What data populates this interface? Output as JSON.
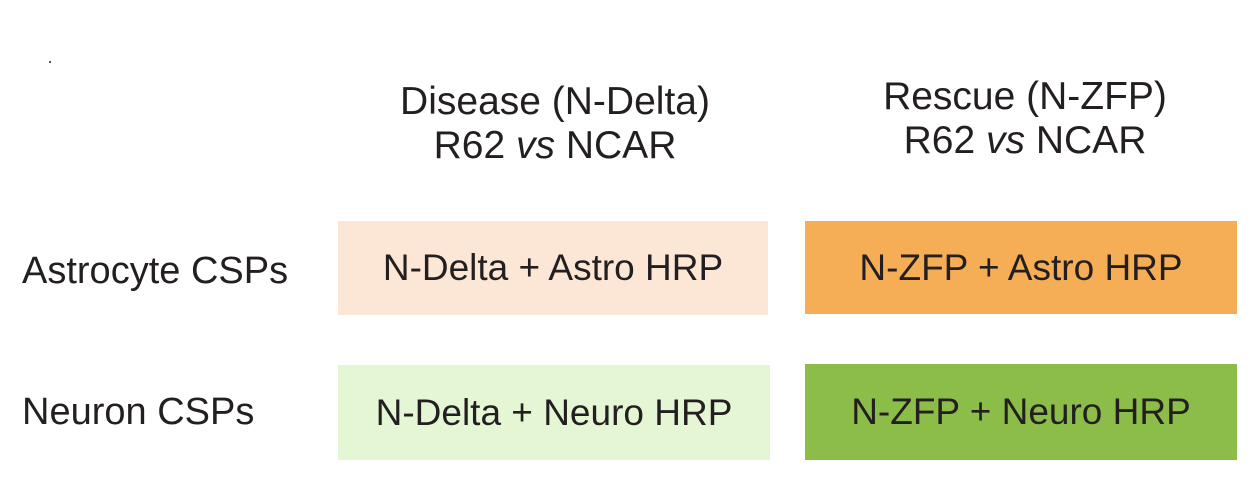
{
  "columns": [
    {
      "title": "Disease (N-Delta)",
      "line2_a": "R62 ",
      "line2_em": "vs",
      "line2_b": " NCAR"
    },
    {
      "title": "Rescue (N-ZFP)",
      "line2_a": "R62 ",
      "line2_em": "vs",
      "line2_b": " NCAR"
    }
  ],
  "rows": [
    {
      "label": "Astrocyte CSPs"
    },
    {
      "label": "Neuron CSPs"
    }
  ],
  "cells": [
    {
      "text": "N-Delta + Astro HRP",
      "color": "#fce6d6"
    },
    {
      "text": "N-ZFP + Astro HRP",
      "color": "#f5ae55"
    },
    {
      "text": "N-Delta + Neuro HRP",
      "color": "#e5f6d4"
    },
    {
      "text": "N-ZFP + Neuro HRP",
      "color": "#8cbd48"
    }
  ]
}
